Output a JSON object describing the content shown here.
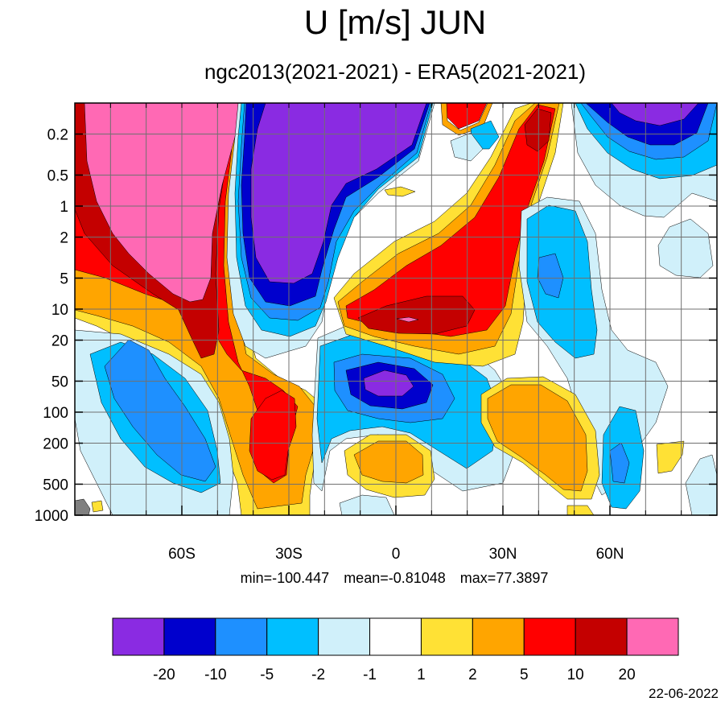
{
  "title": "U [m/s] JUN",
  "subtitle": "ngc2013(2021-2021) - ERA5(2021-2021)",
  "stats": {
    "min": "min=-100.447",
    "mean": "mean=-0.81048",
    "max": "max=77.3897"
  },
  "date": "22-06-2022",
  "colors": {
    "c0": "#8a2be2",
    "c1": "#0000cd",
    "c2": "#1e90ff",
    "c3": "#00bfff",
    "c4": "#d0f0fa",
    "c5": "#ffffff",
    "c6": "#ffe135",
    "c7": "#ffa500",
    "c8": "#ff0000",
    "c9": "#c40000",
    "c10": "#ff69b4"
  },
  "chart_data": {
    "type": "heatmap",
    "title": "U [m/s] JUN",
    "subtitle": "ngc2013(2021-2021) - ERA5(2021-2021)",
    "x_ticks": [
      "60S",
      "30S",
      "0",
      "30N",
      "60N"
    ],
    "x_tick_values": [
      -60,
      -30,
      0,
      30,
      60
    ],
    "xlim": [
      -90,
      90
    ],
    "y_ticks": [
      "0.2",
      "0.5",
      "1",
      "2",
      "5",
      "10",
      "20",
      "50",
      "100",
      "200",
      "500",
      "1000"
    ],
    "y_tick_values": [
      0.2,
      0.5,
      1,
      2,
      5,
      10,
      20,
      50,
      100,
      200,
      500,
      1000
    ],
    "y_scale": "log",
    "y_reversed": true,
    "colorbar_levels": [
      "-20",
      "-10",
      "-5",
      "-2",
      "-1",
      "1",
      "2",
      "5",
      "10",
      "20"
    ],
    "colorbar_colors": [
      "#8a2be2",
      "#0000cd",
      "#1e90ff",
      "#00bfff",
      "#d0f0fa",
      "#ffffff",
      "#ffe135",
      "#ffa500",
      "#ff0000",
      "#c40000",
      "#ff69b4"
    ],
    "min": -100.447,
    "mean": -0.81048,
    "max": 77.3897
  }
}
